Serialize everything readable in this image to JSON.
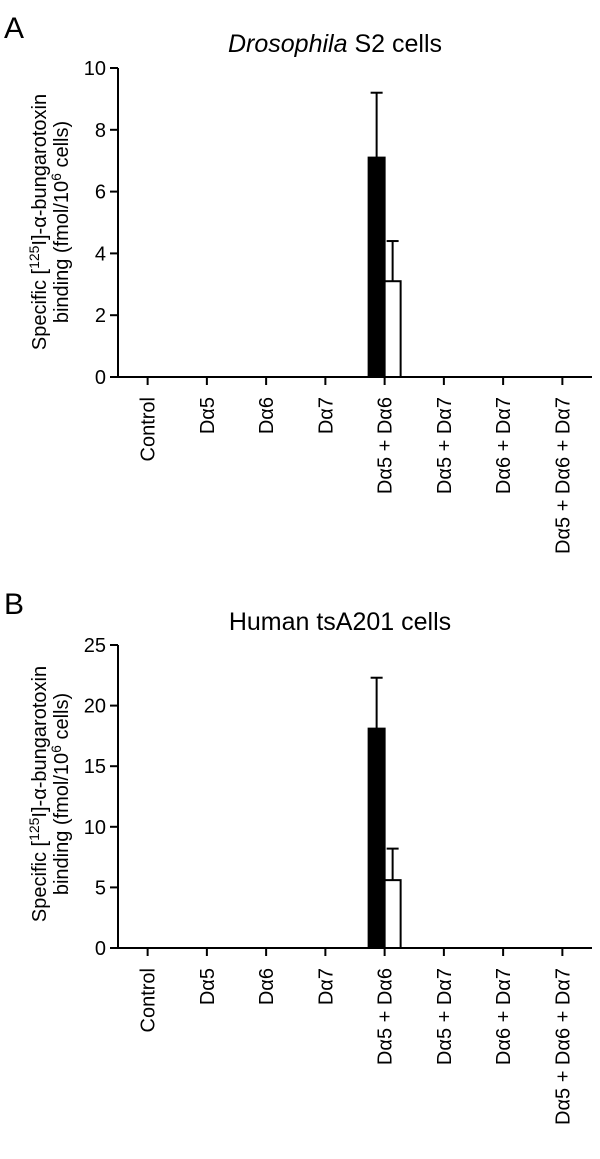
{
  "chart_data": [
    {
      "type": "bar",
      "panel": "A",
      "title_italic": "Drosophila",
      "title_rest": " S2 cells",
      "ylabel_line1": "Specific [125I]-α-bungarotoxin",
      "ylabel_line2": "binding (fmol/106 cells)",
      "ylim": [
        0,
        10
      ],
      "yticks": [
        "0",
        "2",
        "4",
        "6",
        "8",
        "10"
      ],
      "categories": [
        "Control",
        "Dα5",
        "Dα6",
        "Dα7",
        "Dα5 + Dα6",
        "Dα5 + Dα7",
        "Dα6 + Dα7",
        "Dα5 + Dα6 + Dα7"
      ],
      "series": [
        {
          "color": "#000000",
          "values": [
            0,
            0,
            0,
            0,
            7.1,
            0,
            0,
            0
          ],
          "errors": [
            0,
            0,
            0,
            0,
            2.1,
            0,
            0,
            0
          ]
        },
        {
          "color": "#ffffff",
          "values": [
            0,
            0,
            0,
            0,
            3.1,
            0,
            0,
            0
          ],
          "errors": [
            0,
            0,
            0,
            0,
            1.3,
            0,
            0,
            0
          ]
        }
      ]
    },
    {
      "type": "bar",
      "panel": "B",
      "title_italic": "",
      "title_rest": "Human tsA201 cells",
      "ylabel_line1": "Specific [125I]-α-bungarotoxin",
      "ylabel_line2": "binding (fmol/106 cells)",
      "ylim": [
        0,
        25
      ],
      "yticks": [
        "0",
        "5",
        "10",
        "15",
        "20",
        "25"
      ],
      "categories": [
        "Control",
        "Dα5",
        "Dα6",
        "Dα7",
        "Dα5 + Dα6",
        "Dα5 + Dα7",
        "Dα6 + Dα7",
        "Dα5 + Dα6 + Dα7"
      ],
      "series": [
        {
          "color": "#000000",
          "values": [
            0,
            0,
            0,
            0,
            18.1,
            0,
            0,
            0
          ],
          "errors": [
            0,
            0,
            0,
            0,
            4.2,
            0,
            0,
            0
          ]
        },
        {
          "color": "#ffffff",
          "values": [
            0,
            0,
            0,
            0,
            5.6,
            0,
            0,
            0
          ],
          "errors": [
            0,
            0,
            0,
            0,
            2.6,
            0,
            0,
            0
          ]
        }
      ]
    }
  ]
}
